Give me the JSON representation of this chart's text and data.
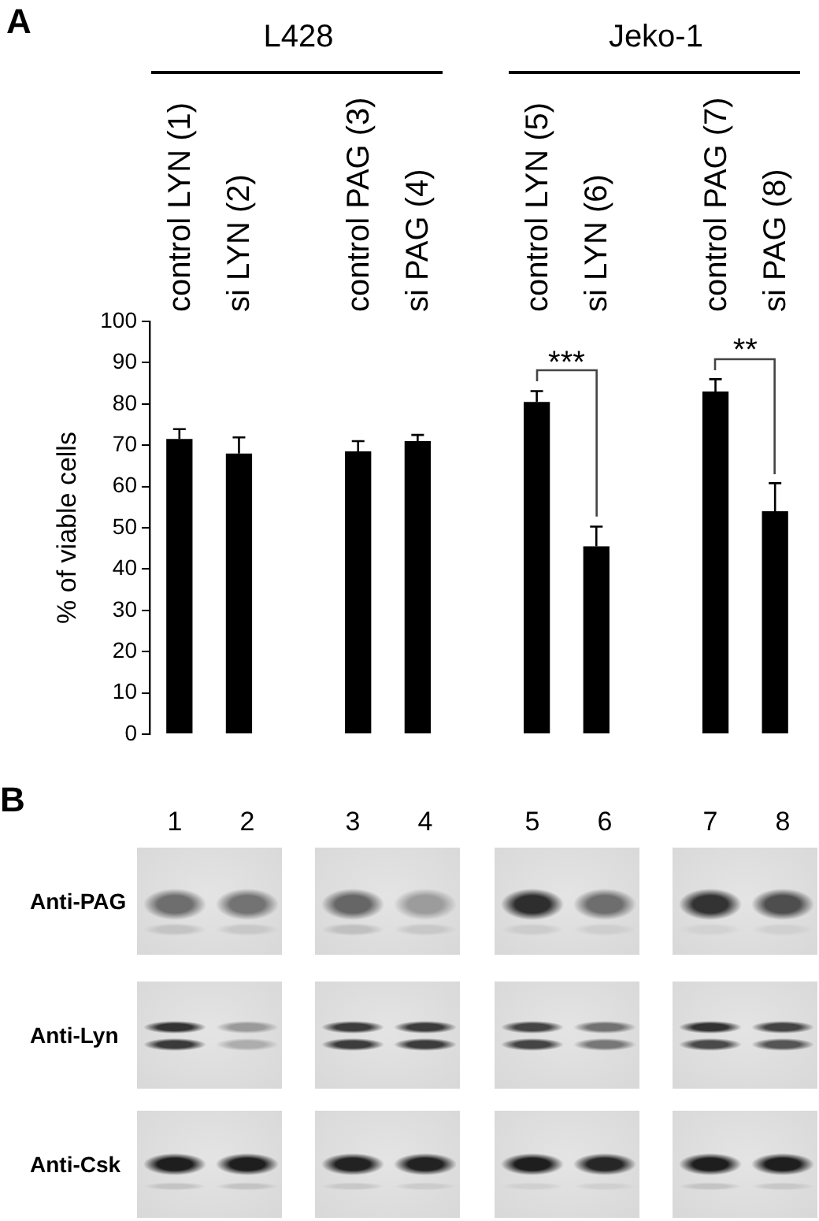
{
  "chart_data": [
    {
      "type": "bar",
      "categories": [
        "control LYN (1)",
        "si LYN (2)",
        null,
        "control PAG (3)",
        "si PAG (4)",
        null,
        "control LYN (5)",
        "si LYN (6)",
        null,
        "control PAG (7)",
        "si PAG (8)"
      ],
      "values": [
        71.5,
        68,
        null,
        68.5,
        71,
        null,
        80.5,
        45.5,
        null,
        83,
        54
      ],
      "errors": [
        [
          71.5,
          73.9
        ],
        [
          68,
          71.9
        ],
        null,
        [
          68.5,
          71
        ],
        [
          71,
          72.5
        ],
        null,
        [
          80.5,
          83.1
        ],
        [
          45.5,
          50.3
        ],
        null,
        [
          83,
          86
        ],
        [
          54,
          60.8
        ]
      ],
      "color": "#000000",
      "ylabel": "% of viable cells",
      "ylim": [
        0,
        100
      ],
      "yticks": [
        0,
        10,
        20,
        30,
        40,
        50,
        60,
        70,
        80,
        90,
        100
      ],
      "annotations": [
        "A",
        "L428",
        "Jeko-1",
        "***",
        "**"
      ]
    },
    {
      "type": "other",
      "annotations": [
        "B"
      ],
      "categories": [
        "1",
        "2",
        "3",
        "4",
        "5",
        "6",
        "7",
        "8"
      ],
      "y_categories": [
        "Anti-PAG",
        "Anti-Lyn",
        "Anti-Csk"
      ]
    }
  ]
}
